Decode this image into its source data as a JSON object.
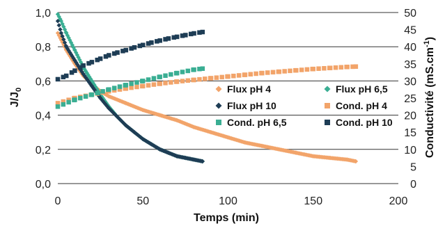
{
  "chart_data": {
    "type": "scatter",
    "xlabel": "Temps (min)",
    "ylabel_left": "J/J",
    "ylabel_left_sub": "0",
    "ylabel_right": "Conductivité (mS.cm",
    "ylabel_right_sup": "-1",
    "ylabel_right_close": ")",
    "xlim": [
      0,
      200
    ],
    "ylim_left": [
      0,
      1
    ],
    "ylim_right": [
      0,
      50
    ],
    "x_ticks": [
      "0",
      "50",
      "100",
      "150",
      "200"
    ],
    "y_left_ticks": [
      "0,0",
      "0,2",
      "0,4",
      "0,6",
      "0,8",
      "1,0"
    ],
    "y_right_ticks": [
      "0",
      "5",
      "10",
      "15",
      "20",
      "25",
      "30",
      "35",
      "40",
      "45",
      "50"
    ],
    "grid": "horizontal",
    "legend_position": "center-right",
    "series": [
      {
        "name": "Flux pH 4",
        "axis": "left",
        "marker": "diamond",
        "color": "#f2a46a",
        "x": [
          0,
          2,
          5,
          10,
          15,
          20,
          25,
          30,
          40,
          50,
          60,
          70,
          80,
          90,
          100,
          110,
          120,
          130,
          140,
          150,
          160,
          170,
          175
        ],
        "y": [
          0.88,
          0.84,
          0.78,
          0.7,
          0.63,
          0.58,
          0.54,
          0.51,
          0.47,
          0.43,
          0.4,
          0.37,
          0.33,
          0.3,
          0.27,
          0.24,
          0.22,
          0.2,
          0.18,
          0.16,
          0.15,
          0.14,
          0.13
        ]
      },
      {
        "name": "Flux pH 6,5",
        "axis": "left",
        "marker": "diamond",
        "color": "#3aae93",
        "x": [
          0,
          2,
          5,
          10,
          15,
          20,
          25,
          30,
          35,
          40,
          45,
          50,
          55,
          60,
          65,
          70,
          75,
          80,
          85
        ],
        "y": [
          0.99,
          0.95,
          0.88,
          0.78,
          0.68,
          0.6,
          0.52,
          0.45,
          0.39,
          0.34,
          0.3,
          0.26,
          0.23,
          0.2,
          0.18,
          0.16,
          0.15,
          0.14,
          0.13
        ]
      },
      {
        "name": "Flux pH 10",
        "axis": "left",
        "marker": "diamond",
        "color": "#1e3d55",
        "x": [
          0,
          2,
          5,
          10,
          15,
          20,
          25,
          30,
          35,
          40,
          45,
          50,
          55,
          60,
          65,
          70,
          75,
          80,
          85
        ],
        "y": [
          0.95,
          0.88,
          0.8,
          0.72,
          0.64,
          0.57,
          0.5,
          0.44,
          0.39,
          0.34,
          0.3,
          0.26,
          0.23,
          0.2,
          0.18,
          0.16,
          0.15,
          0.14,
          0.13
        ]
      },
      {
        "name": "Cond. pH 4",
        "axis": "right",
        "marker": "square",
        "color": "#f2a46a",
        "x": [
          0,
          10,
          20,
          30,
          40,
          50,
          60,
          70,
          80,
          90,
          100,
          110,
          120,
          130,
          140,
          150,
          160,
          170,
          175
        ],
        "y": [
          23.5,
          25.0,
          26.0,
          27.0,
          27.8,
          28.5,
          29.2,
          29.8,
          30.3,
          30.8,
          31.3,
          31.8,
          32.3,
          32.7,
          33.1,
          33.5,
          33.8,
          34.1,
          34.2
        ]
      },
      {
        "name": "Cond. pH 6,5",
        "axis": "right",
        "marker": "square",
        "color": "#3aae93",
        "x": [
          0,
          10,
          20,
          30,
          40,
          50,
          60,
          70,
          80,
          85
        ],
        "y": [
          22.5,
          24.5,
          26.0,
          27.5,
          28.8,
          30.0,
          31.2,
          32.3,
          33.3,
          33.6
        ]
      },
      {
        "name": "Cond. pH 10",
        "axis": "right",
        "marker": "square",
        "color": "#1e3d55",
        "x": [
          0,
          5,
          10,
          15,
          20,
          25,
          30,
          35,
          40,
          45,
          50,
          55,
          60,
          65,
          70,
          75,
          80,
          85
        ],
        "y": [
          30.5,
          31.5,
          33.0,
          34.5,
          35.5,
          36.5,
          37.5,
          38.3,
          39.0,
          39.8,
          40.5,
          41.2,
          41.8,
          42.4,
          42.9,
          43.4,
          43.9,
          44.3
        ]
      }
    ]
  }
}
